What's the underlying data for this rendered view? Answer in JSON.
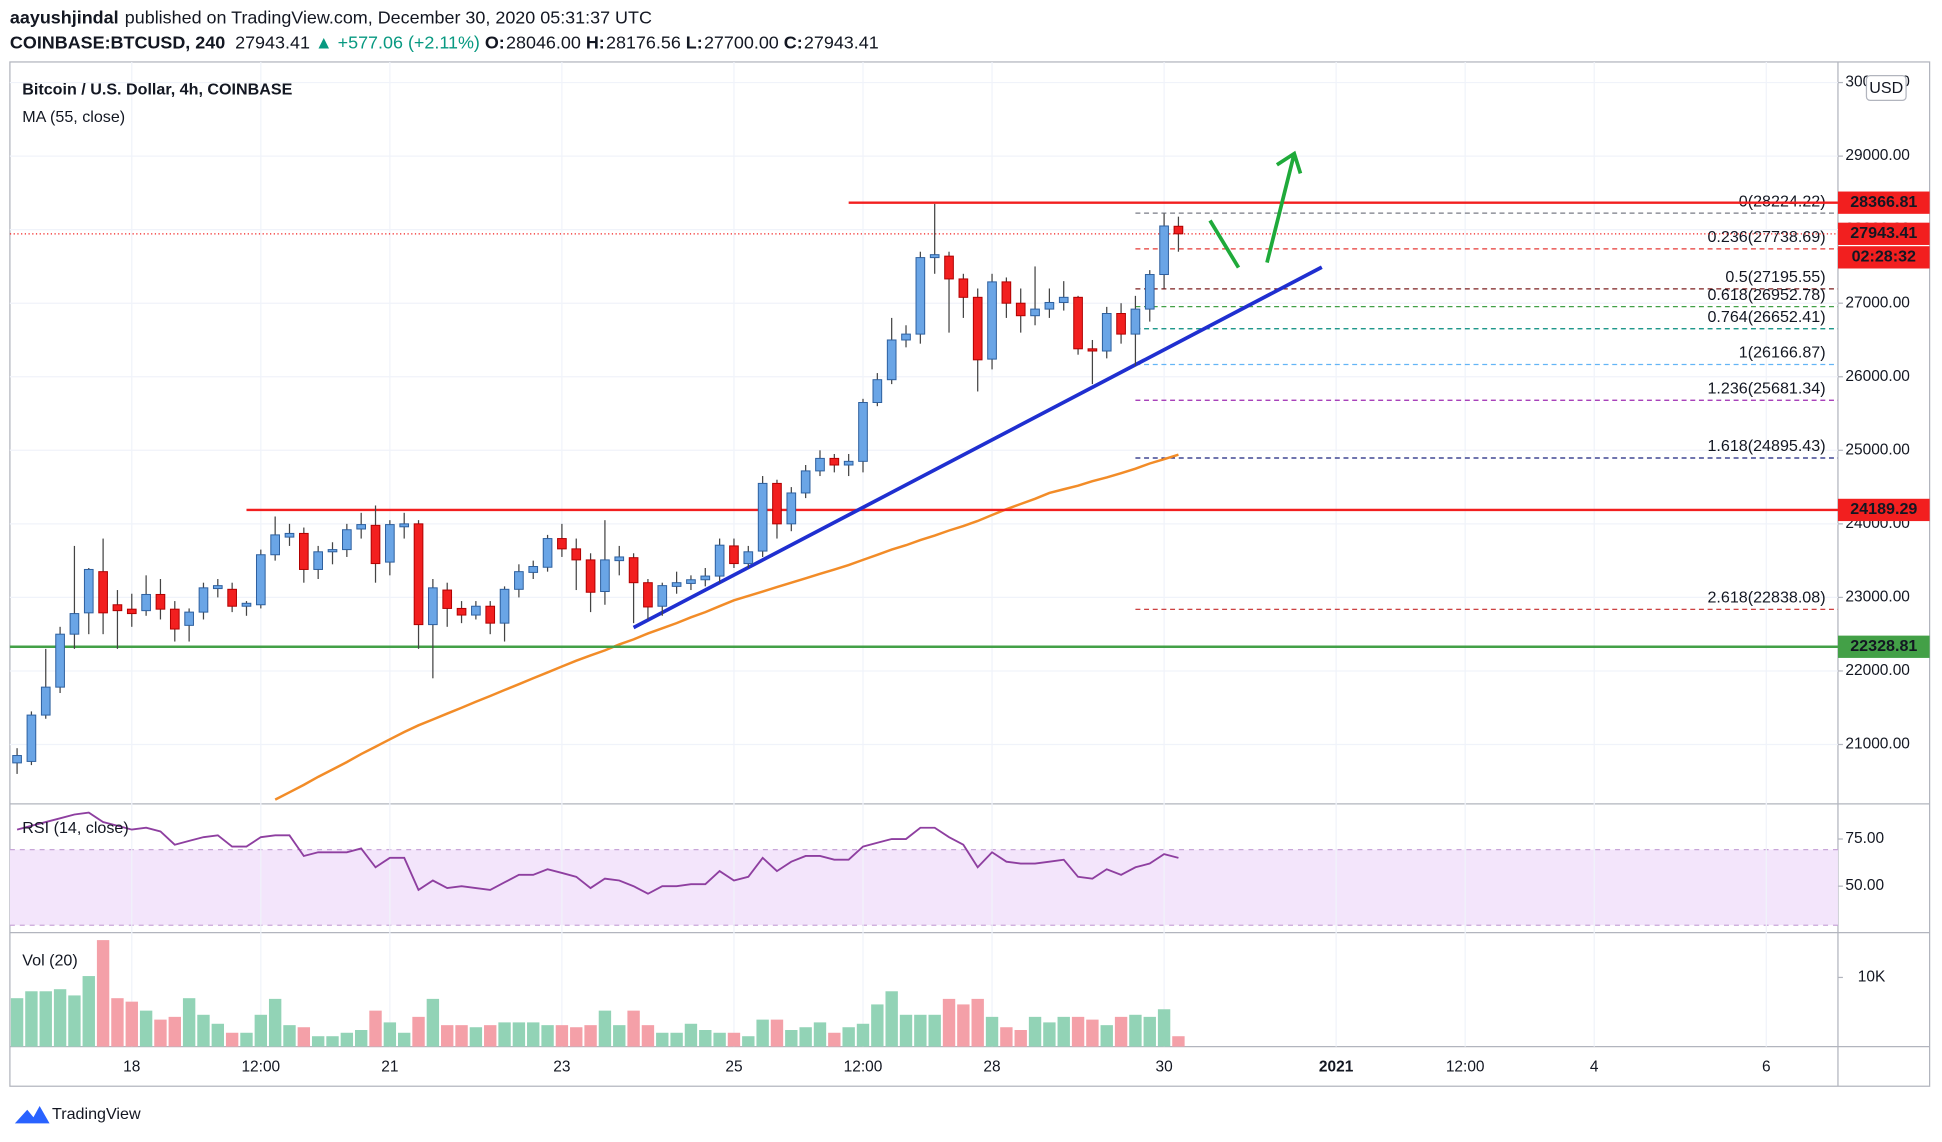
{
  "header": {
    "author": "aayushjindal",
    "published": "published on TradingView.com, December 30, 2020 05:31:37 UTC",
    "symbol": "COINBASE:BTCUSD, 240",
    "last": "27943.41",
    "change": "▲ +577.06 (+2.11%)",
    "ohlc": [
      {
        "label": "O:",
        "value": "28046.00"
      },
      {
        "label": "H:",
        "value": "28176.56"
      },
      {
        "label": "L:",
        "value": "27700.00"
      },
      {
        "label": "C:",
        "value": "27943.41"
      }
    ]
  },
  "footer": "TradingView",
  "chart_data": [
    {
      "type": "candlestick",
      "title": "Bitcoin / U.S. Dollar, 4h, COINBASE",
      "currency": "USD",
      "up_color": "#6aa5e6",
      "down_color": "#f21f1f",
      "open": [
        20750,
        20770,
        21400,
        21780,
        22500,
        22790,
        23350,
        22900,
        22840,
        22820,
        23040,
        22840,
        22620,
        22800,
        23120,
        23110,
        22880,
        22900,
        23580,
        23820,
        23870,
        23380,
        23620,
        23650,
        23930,
        23980,
        23480,
        23960,
        24000,
        22630,
        23100,
        22850,
        22760,
        22880,
        22650,
        23110,
        23340,
        23410,
        23800,
        23660,
        23510,
        23080,
        23500,
        23540,
        23200,
        22880,
        23150,
        23190,
        23240,
        23290,
        23700,
        23460,
        23630,
        24550,
        24000,
        24420,
        24720,
        24890,
        24800,
        24850,
        25650,
        25960,
        26500,
        26580,
        27620,
        27640,
        27330,
        27080,
        26240,
        27290,
        27000,
        26830,
        26920,
        27010,
        27080,
        26380,
        26350,
        26860,
        26580,
        26920,
        27390,
        28046
      ],
      "high": [
        20950,
        21450,
        22300,
        22600,
        23700,
        23400,
        23800,
        23100,
        23050,
        23300,
        23250,
        22950,
        22850,
        23200,
        23250,
        23200,
        22950,
        23650,
        24100,
        24000,
        23950,
        23700,
        23750,
        24000,
        24150,
        24250,
        24050,
        24150,
        24050,
        23250,
        23200,
        22950,
        22950,
        22950,
        23150,
        23450,
        23500,
        23850,
        24000,
        23800,
        23600,
        24050,
        23700,
        23600,
        23250,
        23200,
        23350,
        23300,
        23400,
        23800,
        23800,
        23700,
        24650,
        24600,
        24500,
        24800,
        25000,
        24950,
        24950,
        25700,
        26050,
        26800,
        26700,
        27700,
        28350,
        27700,
        27400,
        27200,
        27400,
        27350,
        27200,
        27500,
        27200,
        27300,
        27100,
        26500,
        26950,
        27000,
        27100,
        27450,
        28220,
        28176.56
      ],
      "low": [
        20600,
        20720,
        21350,
        21700,
        22300,
        22500,
        22500,
        22300,
        22600,
        22750,
        22700,
        22400,
        22400,
        22700,
        23000,
        22800,
        22750,
        22850,
        23500,
        23700,
        23200,
        23250,
        23450,
        23550,
        23800,
        23200,
        23300,
        23800,
        22300,
        21900,
        22600,
        22650,
        22700,
        22500,
        22400,
        23000,
        23250,
        23350,
        23550,
        23100,
        22800,
        22900,
        23300,
        22650,
        22700,
        22750,
        23050,
        23100,
        23150,
        23200,
        23400,
        23400,
        23550,
        23800,
        23900,
        24350,
        24650,
        24700,
        24650,
        24700,
        25600,
        25900,
        26400,
        26450,
        27400,
        26600,
        26800,
        25800,
        26100,
        26800,
        26600,
        26700,
        26800,
        26900,
        26300,
        25900,
        26250,
        26450,
        26150,
        26750,
        27200,
        27700
      ],
      "close": [
        20850,
        21400,
        21780,
        22500,
        22780,
        23380,
        22790,
        22820,
        22780,
        23040,
        22840,
        22570,
        22800,
        23130,
        23160,
        22880,
        22920,
        23580,
        23850,
        23870,
        23380,
        23620,
        23650,
        23920,
        23990,
        23460,
        23990,
        24000,
        22630,
        23130,
        22850,
        22760,
        22880,
        22650,
        23110,
        23350,
        23420,
        23800,
        23660,
        23510,
        23070,
        23510,
        23550,
        23200,
        22870,
        23160,
        23200,
        23240,
        23290,
        23710,
        23460,
        23620,
        24550,
        24000,
        24420,
        24720,
        24890,
        24800,
        24850,
        25650,
        25960,
        26500,
        26580,
        27620,
        27660,
        27330,
        27080,
        26230,
        27290,
        27000,
        26830,
        26920,
        27010,
        27080,
        26380,
        26350,
        26860,
        26580,
        26920,
        27390,
        28050,
        27943.41
      ],
      "ma": {
        "name": "MA (55, close)",
        "color": "#f28c28",
        "values": [
          null,
          null,
          null,
          null,
          null,
          null,
          null,
          null,
          null,
          null,
          null,
          null,
          null,
          null,
          null,
          null,
          null,
          null,
          20250,
          20350,
          20450,
          20560,
          20660,
          20760,
          20870,
          20970,
          21070,
          21170,
          21260,
          21340,
          21420,
          21500,
          21580,
          21660,
          21740,
          21820,
          21900,
          21980,
          22060,
          22140,
          22210,
          22280,
          22360,
          22430,
          22510,
          22580,
          22650,
          22730,
          22800,
          22880,
          22960,
          23020,
          23080,
          23140,
          23200,
          23260,
          23320,
          23380,
          23440,
          23510,
          23580,
          23650,
          23710,
          23780,
          23840,
          23910,
          23970,
          24040,
          24120,
          24200,
          24270,
          24340,
          24420,
          24470,
          24520,
          24580,
          24630,
          24690,
          24750,
          24820,
          24880,
          24940
        ]
      },
      "levels": [
        {
          "value": 28366.81,
          "color": "#f21f1f",
          "x_start": 58
        },
        {
          "value": 24189.29,
          "color": "#f21f1f",
          "x_start": 16
        },
        {
          "value": 22328.81,
          "color": "#43a047",
          "x_start": -0.5
        }
      ],
      "last_price": {
        "value": 27943.41,
        "countdown": "02:28:32",
        "color": "#f21f1f"
      },
      "fib_x_start": 78,
      "fib": [
        {
          "value": 28224.22,
          "label": "0(28224.22)",
          "color": "#787b86"
        },
        {
          "value": 27738.69,
          "label": "0.236(27738.69)",
          "color": "#e53935"
        },
        {
          "value": 27195.55,
          "label": "0.5(27195.55)",
          "color": "#7b1e1e"
        },
        {
          "value": 26952.78,
          "label": "0.618(26952.78)",
          "color": "#43a047"
        },
        {
          "value": 26652.41,
          "label": "0.764(26652.41)",
          "color": "#00897b"
        },
        {
          "value": 26166.87,
          "label": "1(26166.87)",
          "color": "#64b5f6"
        },
        {
          "value": 25681.34,
          "label": "1.236(25681.34)",
          "color": "#9c27b0"
        },
        {
          "value": 24895.43,
          "label": "1.618(24895.43)",
          "color": "#1a237e"
        },
        {
          "value": 22838.08,
          "label": "2.618(22838.08)",
          "color": "#c62828"
        }
      ],
      "trendline": {
        "x": [
          43,
          91
        ],
        "values": [
          22590,
          27490
        ],
        "color": "#1f2fd0"
      },
      "xlim": [
        -0.5,
        127
      ],
      "ylim": [
        20210,
        30280
      ],
      "yticks": [
        {
          "value": 21000,
          "label": "21000.00"
        },
        {
          "value": 22000,
          "label": "22000.00"
        },
        {
          "value": 23000,
          "label": "23000.00"
        },
        {
          "value": 24000,
          "label": "24000.00"
        },
        {
          "value": 25000,
          "label": "25000.00"
        },
        {
          "value": 26000,
          "label": "26000.00"
        },
        {
          "value": 27000,
          "label": "27000.00"
        },
        {
          "value": 28000,
          "label": "28000.00"
        },
        {
          "value": 29000,
          "label": "29000.00"
        },
        {
          "value": 30000,
          "label": "30000.00"
        }
      ],
      "grid": true
    },
    {
      "type": "line",
      "title": "RSI (14, close)",
      "color": "#8e3fa0",
      "values": [
        80,
        82,
        84,
        86,
        88,
        89,
        84,
        82,
        80,
        81,
        79,
        72,
        74,
        76,
        77,
        71,
        71,
        76,
        77,
        77,
        66,
        68,
        68,
        68,
        70,
        60,
        65,
        65,
        48,
        53,
        49,
        50,
        49,
        48,
        52,
        56,
        56,
        59,
        57,
        55,
        49,
        54,
        53,
        50,
        46,
        50,
        50,
        51,
        51,
        58,
        53,
        55,
        65,
        58,
        63,
        66,
        66,
        64,
        64,
        71,
        73,
        75,
        75,
        81,
        81,
        76,
        72,
        60,
        68,
        63,
        62,
        62,
        63,
        64,
        55,
        54,
        59,
        56,
        60,
        62,
        67,
        65
      ],
      "xlim": [
        -0.5,
        127
      ],
      "ylim": [
        26,
        93
      ],
      "yticks": [
        {
          "value": 50,
          "label": "50.00"
        },
        {
          "value": 75,
          "label": "75.00"
        }
      ]
    },
    {
      "type": "bar",
      "title": "Vol (20)",
      "up_color": "#92d3b6",
      "down_color": "#f4a0a8",
      "values": [
        7000,
        8000,
        8000,
        8300,
        7400,
        10200,
        15400,
        7000,
        6500,
        5200,
        3900,
        4300,
        7000,
        4600,
        3300,
        2000,
        2000,
        4600,
        6900,
        3100,
        2800,
        1500,
        1500,
        2000,
        2400,
        5200,
        3500,
        2000,
        4300,
        6900,
        3100,
        3100,
        2800,
        3100,
        3500,
        3500,
        3500,
        3100,
        3100,
        2800,
        3100,
        5200,
        3100,
        5200,
        3100,
        2000,
        2000,
        3300,
        2400,
        2000,
        2000,
        1500,
        3900,
        3900,
        2400,
        2800,
        3500,
        2000,
        2800,
        3300,
        6100,
        8000,
        4600,
        4600,
        4600,
        6900,
        6100,
        6900,
        4300,
        2800,
        2400,
        4300,
        3500,
        4300,
        4300,
        3900,
        3100,
        4300,
        4600,
        4300,
        5400,
        1500
      ],
      "xlim": [
        -0.5,
        127
      ],
      "ylim": [
        0,
        16300
      ],
      "yticks": [
        {
          "value": 10000,
          "label": "10K"
        }
      ],
      "xticks": [
        {
          "value": 8,
          "label": "18"
        },
        {
          "value": 17,
          "label": "12:00"
        },
        {
          "value": 26,
          "label": "21"
        },
        {
          "value": 38,
          "label": "23"
        },
        {
          "value": 50,
          "label": "25"
        },
        {
          "value": 59,
          "label": "12:00"
        },
        {
          "value": 68,
          "label": "28"
        },
        {
          "value": 80,
          "label": "30"
        },
        {
          "value": 92,
          "label": "2021"
        },
        {
          "value": 101,
          "label": "12:00"
        },
        {
          "value": 110,
          "label": "4"
        },
        {
          "value": 122,
          "label": "6"
        }
      ]
    }
  ]
}
